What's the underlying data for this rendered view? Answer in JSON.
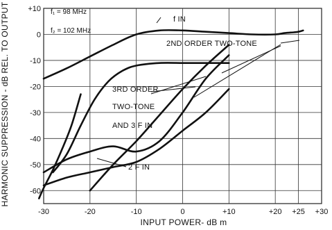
{
  "chart_data": {
    "type": "line",
    "title": "",
    "xlabel": "INPUT POWER- dB m",
    "ylabel": "HARMONIC SUPPRESSION - dB REL. TO OUTPUT",
    "xlim": [
      -30,
      30
    ],
    "ylim": [
      -65,
      10
    ],
    "grid": true,
    "x_ticks": [
      -30,
      -20,
      -10,
      0,
      10,
      20,
      25,
      30
    ],
    "x_tick_labels": [
      "-30",
      "-20",
      "-10",
      "0",
      "+10",
      "+20",
      "+25",
      "+30"
    ],
    "y_ticks": [
      10,
      0,
      -10,
      -20,
      -30,
      -40,
      -50,
      -60
    ],
    "y_tick_labels": [
      "+10",
      "0",
      "-10",
      "-20",
      "-30",
      "-40",
      "-50",
      "-60"
    ],
    "legend": {
      "f1": "f₁ = 98 MHz",
      "f2": "f₂ = 102 MHz"
    },
    "annotations": {
      "fin": "f IN",
      "second_order": "2ND ORDER TWO-TONE",
      "third_order_1": "3RD ORDER",
      "third_order_2": "TWO-TONE",
      "third_order_3": "AND 3 F IN",
      "two_f": "2 F IN"
    },
    "series": [
      {
        "x": [
          -30,
          -25,
          -20,
          -15,
          -10,
          -5,
          0,
          5,
          10,
          15,
          20,
          22,
          24,
          25,
          26
        ],
        "y": [
          -17,
          -13,
          -8.5,
          -4,
          0,
          1.5,
          1.5,
          1,
          0.5,
          0,
          0,
          0.5,
          0.8,
          1,
          1.5
        ]
      },
      {
        "x": [
          -28,
          -25,
          -22,
          -19,
          -16,
          -13,
          -10,
          -5,
          0,
          5,
          10
        ],
        "y": [
          -53,
          -46,
          -35,
          -25,
          -18,
          -14,
          -12,
          -11,
          -11,
          -11,
          -11
        ]
      },
      {
        "x": [
          -30,
          -25,
          -20,
          -15,
          -10,
          -5,
          0,
          5,
          10
        ],
        "y": [
          -53,
          -48,
          -45,
          -43,
          -45,
          -41,
          -30,
          -17,
          -8
        ]
      },
      {
        "x": [
          -31,
          -30,
          -28,
          -26,
          -24,
          -22
        ],
        "y": [
          -63,
          -59,
          -52,
          -44,
          -35,
          -23
        ]
      },
      {
        "x": [
          -30,
          -25,
          -20,
          -15,
          -10,
          -5,
          0,
          5,
          10
        ],
        "y": [
          -58,
          -55,
          -53,
          -51,
          -49,
          -44,
          -37,
          -30,
          -21
        ]
      },
      {
        "x": [
          -20,
          -15,
          -10,
          -5,
          0,
          5,
          10
        ],
        "y": [
          -60,
          -50,
          -41,
          -31,
          -21,
          -12,
          -4
        ]
      }
    ]
  }
}
